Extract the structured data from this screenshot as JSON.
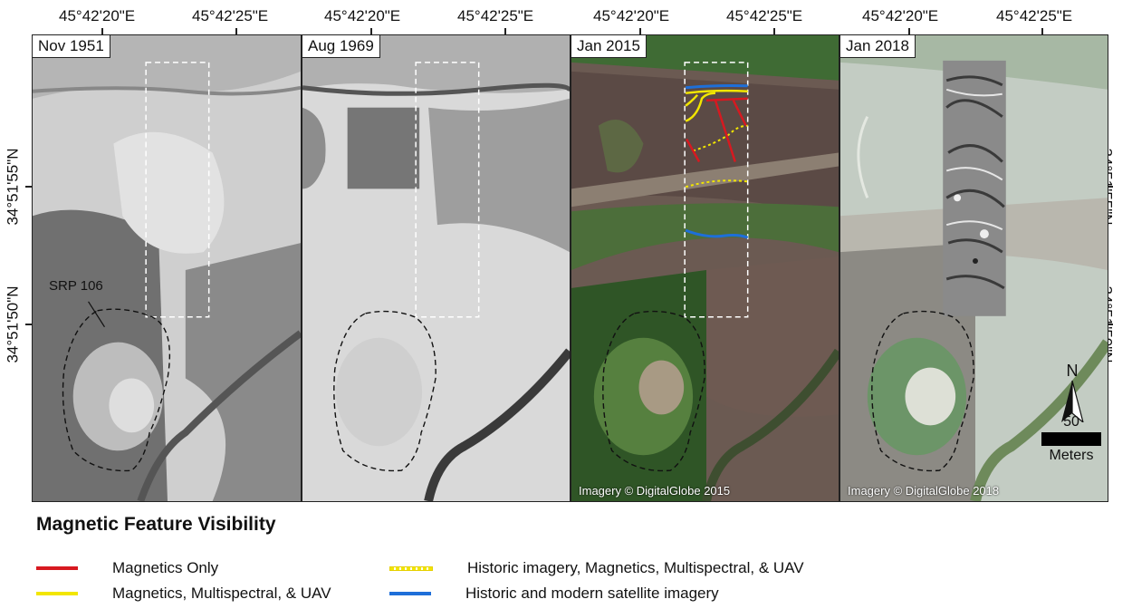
{
  "coords": {
    "lon_a": "45°42'20\"E",
    "lon_b": "45°42'25\"E",
    "lat_a": "34°51'55\"N",
    "lat_b": "34°51'50\"N"
  },
  "panels": [
    {
      "date": "Nov 1951"
    },
    {
      "date": "Aug 1969"
    },
    {
      "date": "Jan 2015",
      "credit": "Imagery © DigitalGlobe 2015"
    },
    {
      "date": "Jan 2018",
      "credit": "Imagery © DigitalGlobe 2018"
    }
  ],
  "site_label": "SRP 106",
  "north_label": "N",
  "scale": {
    "value": "50",
    "unit": "Meters"
  },
  "legend": {
    "title": "Magnetic Feature Visibility",
    "items": [
      {
        "label": "Magnetics Only",
        "color": "#d71920",
        "style": "solid"
      },
      {
        "label": "Magnetics, Multispectral, & UAV",
        "color": "#f2e600",
        "style": "solid"
      },
      {
        "label": "Historic imagery, Magnetics, Multispectral, & UAV",
        "color": "#f2e600",
        "style": "dotted"
      },
      {
        "label": "Historic and modern satellite imagery",
        "color": "#1e6fd9",
        "style": "solid"
      }
    ]
  }
}
